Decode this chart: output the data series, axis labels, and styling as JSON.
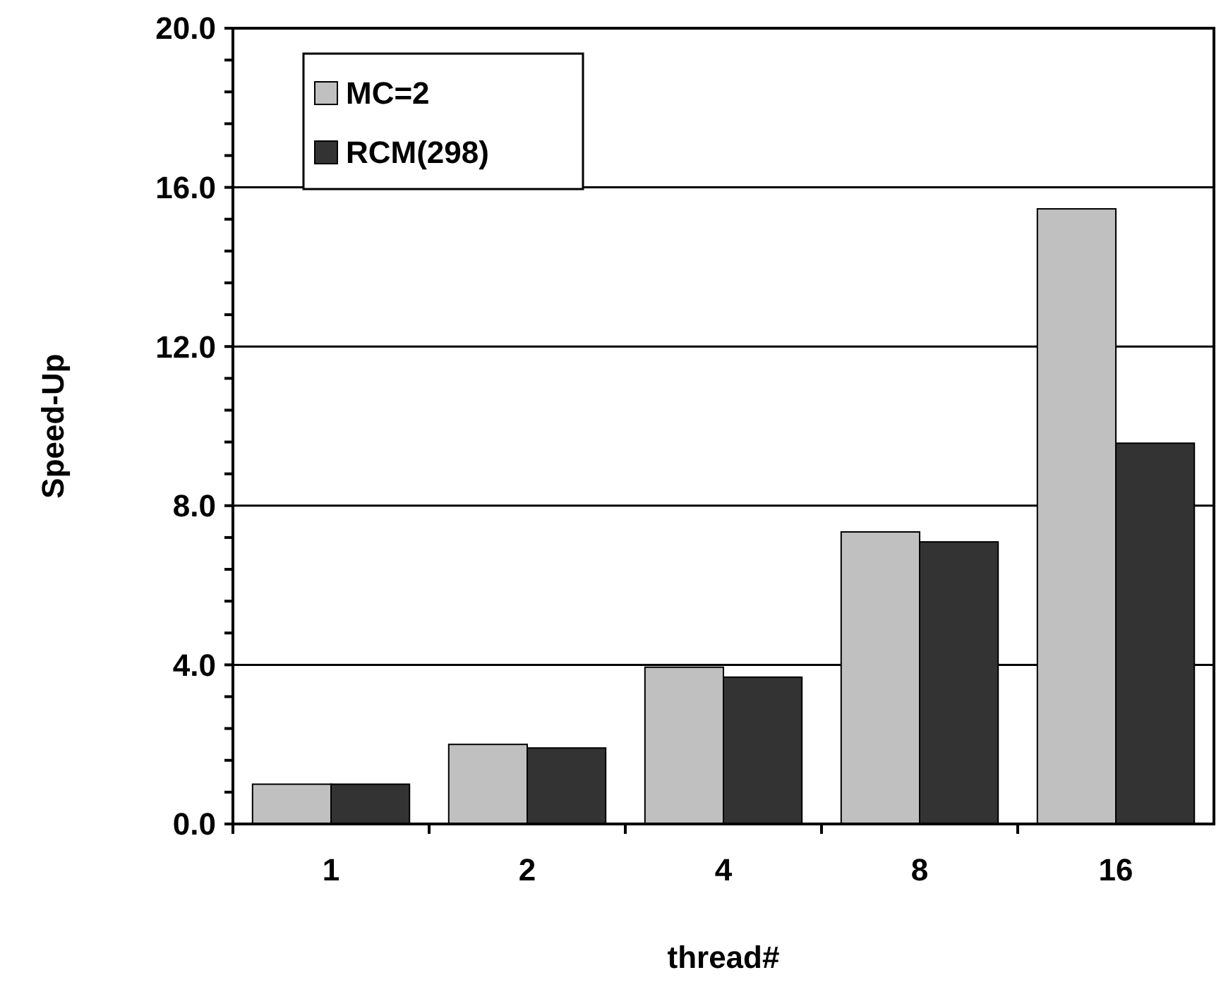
{
  "chart_data": {
    "type": "bar",
    "xlabel": "thread#",
    "ylabel": "Speed-Up",
    "categories": [
      "1",
      "2",
      "4",
      "8",
      "16"
    ],
    "series": [
      {
        "name": "MC=2",
        "color": "#c0c0c0",
        "values": [
          1.0,
          2.0,
          3.94,
          7.34,
          15.46
        ]
      },
      {
        "name": "RCM(298)",
        "color": "#333333",
        "values": [
          1.0,
          1.91,
          3.69,
          7.09,
          9.57
        ]
      }
    ],
    "ylim": [
      0,
      20
    ],
    "yticks": [
      {
        "value": 0,
        "label": "0.0"
      },
      {
        "value": 0.8,
        "label": null
      },
      {
        "value": 1.6,
        "label": null
      },
      {
        "value": 2.4,
        "label": null
      },
      {
        "value": 3.2,
        "label": null
      },
      {
        "value": 4,
        "label": "4.0"
      },
      {
        "value": 4.8,
        "label": null
      },
      {
        "value": 5.6,
        "label": null
      },
      {
        "value": 6.4,
        "label": null
      },
      {
        "value": 7.2,
        "label": null
      },
      {
        "value": 8,
        "label": "8.0"
      },
      {
        "value": 8.8,
        "label": null
      },
      {
        "value": 9.6,
        "label": null
      },
      {
        "value": 10.4,
        "label": null
      },
      {
        "value": 11.2,
        "label": null
      },
      {
        "value": 12,
        "label": "12.0"
      },
      {
        "value": 12.8,
        "label": null
      },
      {
        "value": 13.6,
        "label": null
      },
      {
        "value": 14.4,
        "label": null
      },
      {
        "value": 15.2,
        "label": null
      },
      {
        "value": 16,
        "label": "16.0"
      },
      {
        "value": 16.8,
        "label": null
      },
      {
        "value": 17.6,
        "label": null
      },
      {
        "value": 18.4,
        "label": null
      },
      {
        "value": 19.2,
        "label": null
      },
      {
        "value": 20,
        "label": "20.0"
      }
    ],
    "grid": "y",
    "legend": "top left"
  }
}
